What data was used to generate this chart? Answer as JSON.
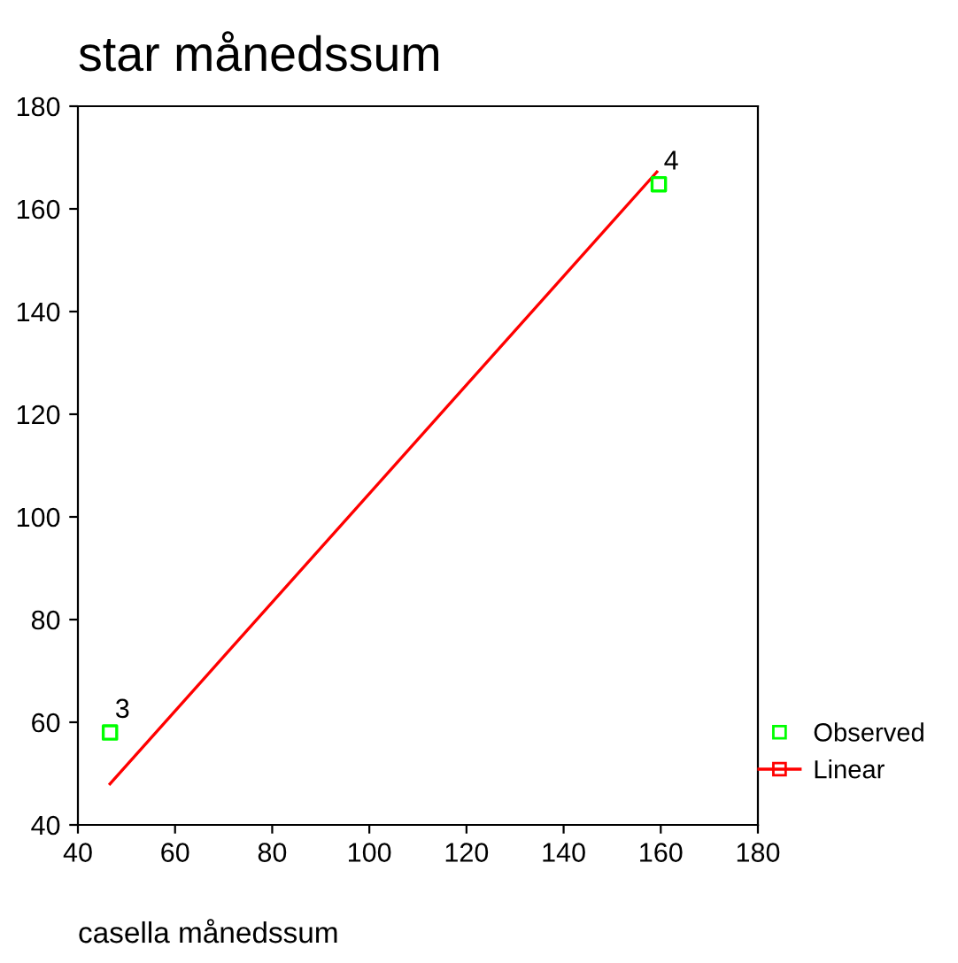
{
  "chart_data": {
    "type": "scatter",
    "title": "star månedssum",
    "xlabel": "casella månedssum",
    "series": [
      {
        "name": "Observed",
        "color": "#00ff00",
        "x": [
          46.6,
          159.6
        ],
        "values": [
          58,
          164.8
        ],
        "marker": "square"
      },
      {
        "name": "Linear",
        "type": "line",
        "color": "#ff0000",
        "x": [
          46.6,
          159.2
        ],
        "values": [
          48,
          167.2
        ],
        "marker": "none"
      }
    ],
    "annotations": [
      {
        "text": "3",
        "x": 46.6,
        "y": 58
      },
      {
        "text": "4",
        "x": 159.6,
        "y": 164.8
      }
    ],
    "xlim": [
      40,
      180
    ],
    "xticks": [
      40,
      60,
      80,
      100,
      120,
      140,
      160,
      180
    ],
    "ylim": [
      40,
      180
    ],
    "yticks": [
      40,
      60,
      80,
      100,
      120,
      140,
      160,
      180
    ],
    "grid": false,
    "legend": "right"
  }
}
